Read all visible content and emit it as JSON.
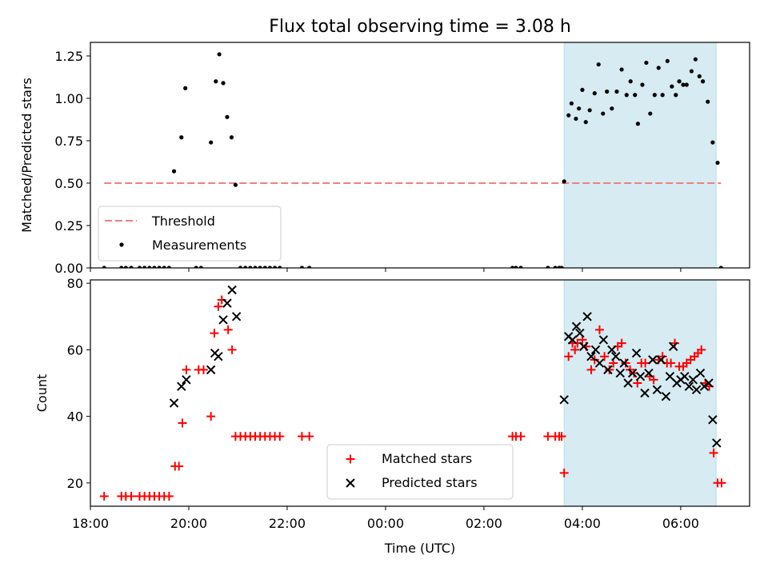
{
  "figure": {
    "title": "Flux total observing time = 3.08 h"
  },
  "chart_data": [
    {
      "id": "ratio",
      "type": "scatter",
      "xlabel": "",
      "ylabel": "Matched/Predicted stars",
      "xlim": [
        18.0,
        7.4
      ],
      "ylim": [
        0,
        1.33
      ],
      "x_wraps_midnight": true,
      "yticks": [
        0.0,
        0.25,
        0.5,
        0.75,
        1.0,
        1.25
      ],
      "ytick_labels": [
        "0.00",
        "0.25",
        "0.50",
        "0.75",
        "1.00",
        "1.25"
      ],
      "xtick_labels_shown": false,
      "shaded_span": {
        "start": 3.63,
        "end": 6.72,
        "color": "#add8e6"
      },
      "threshold": {
        "name": "Threshold",
        "y": 0.5,
        "x_start": 18.28,
        "x_end": 6.82,
        "color": "#f08080",
        "style": "dashed"
      },
      "legend": {
        "position": "lower-left",
        "entries": [
          "Threshold",
          "Measurements"
        ]
      },
      "series": [
        {
          "name": "Measurements",
          "marker": "dot",
          "color": "#000000",
          "points": [
            [
              18.28,
              0.0
            ],
            [
              18.63,
              0.0
            ],
            [
              18.72,
              0.0
            ],
            [
              18.83,
              0.0
            ],
            [
              19.0,
              0.0
            ],
            [
              19.1,
              0.0
            ],
            [
              19.2,
              0.0
            ],
            [
              19.3,
              0.0
            ],
            [
              19.4,
              0.0
            ],
            [
              19.5,
              0.0
            ],
            [
              19.6,
              0.0
            ],
            [
              19.7,
              0.57
            ],
            [
              19.85,
              0.77
            ],
            [
              19.93,
              1.06
            ],
            [
              20.15,
              0.0
            ],
            [
              20.25,
              0.0
            ],
            [
              20.45,
              0.74
            ],
            [
              20.55,
              1.1
            ],
            [
              20.62,
              1.26
            ],
            [
              20.7,
              1.09
            ],
            [
              20.78,
              0.89
            ],
            [
              20.87,
              0.77
            ],
            [
              20.95,
              0.49
            ],
            [
              21.05,
              0.0
            ],
            [
              21.15,
              0.0
            ],
            [
              21.25,
              0.0
            ],
            [
              21.35,
              0.0
            ],
            [
              21.45,
              0.0
            ],
            [
              21.55,
              0.0
            ],
            [
              21.65,
              0.0
            ],
            [
              21.75,
              0.0
            ],
            [
              21.85,
              0.0
            ],
            [
              22.3,
              0.0
            ],
            [
              22.45,
              0.0
            ],
            [
              2.58,
              0.0
            ],
            [
              2.65,
              0.0
            ],
            [
              2.75,
              0.0
            ],
            [
              3.3,
              0.0
            ],
            [
              3.45,
              0.0
            ],
            [
              3.53,
              0.0
            ],
            [
              3.58,
              0.0
            ],
            [
              3.63,
              0.51
            ],
            [
              3.72,
              0.9
            ],
            [
              3.78,
              0.97
            ],
            [
              3.87,
              0.88
            ],
            [
              3.93,
              0.94
            ],
            [
              4.0,
              1.05
            ],
            [
              4.07,
              0.86
            ],
            [
              4.15,
              0.93
            ],
            [
              4.25,
              1.03
            ],
            [
              4.33,
              1.2
            ],
            [
              4.42,
              0.91
            ],
            [
              4.5,
              1.04
            ],
            [
              4.6,
              0.94
            ],
            [
              4.7,
              1.04
            ],
            [
              4.8,
              1.17
            ],
            [
              4.9,
              1.02
            ],
            [
              4.98,
              1.1
            ],
            [
              5.07,
              1.02
            ],
            [
              5.13,
              0.85
            ],
            [
              5.22,
              1.08
            ],
            [
              5.3,
              1.21
            ],
            [
              5.38,
              0.91
            ],
            [
              5.47,
              1.02
            ],
            [
              5.55,
              1.18
            ],
            [
              5.63,
              1.02
            ],
            [
              5.73,
              1.22
            ],
            [
              5.82,
              1.07
            ],
            [
              5.9,
              1.02
            ],
            [
              5.97,
              1.1
            ],
            [
              6.05,
              1.08
            ],
            [
              6.12,
              1.08
            ],
            [
              6.22,
              1.16
            ],
            [
              6.3,
              1.23
            ],
            [
              6.38,
              1.13
            ],
            [
              6.45,
              1.1
            ],
            [
              6.55,
              0.98
            ],
            [
              6.65,
              0.74
            ],
            [
              6.75,
              0.62
            ],
            [
              6.82,
              0.0
            ]
          ]
        }
      ]
    },
    {
      "id": "count",
      "type": "scatter",
      "xlabel": "Time (UTC)",
      "ylabel": "Count",
      "xlim": [
        18.0,
        7.4
      ],
      "ylim": [
        13,
        81
      ],
      "x_wraps_midnight": true,
      "yticks": [
        20,
        40,
        60,
        80
      ],
      "ytick_labels": [
        "20",
        "40",
        "60",
        "80"
      ],
      "xticks": [
        18,
        20,
        22,
        0,
        2,
        4,
        6
      ],
      "xtick_labels": [
        "18:00",
        "20:00",
        "22:00",
        "00:00",
        "02:00",
        "04:00",
        "06:00"
      ],
      "shaded_span": {
        "start": 3.63,
        "end": 6.72,
        "color": "#add8e6"
      },
      "legend": {
        "position": "lower-center",
        "entries": [
          "Matched stars",
          "Predicted stars"
        ]
      },
      "series": [
        {
          "name": "Matched stars",
          "marker": "plus",
          "color": "#ff0000",
          "points": [
            [
              18.28,
              16
            ],
            [
              18.63,
              16
            ],
            [
              18.72,
              16
            ],
            [
              18.83,
              16
            ],
            [
              19.0,
              16
            ],
            [
              19.1,
              16
            ],
            [
              19.2,
              16
            ],
            [
              19.3,
              16
            ],
            [
              19.4,
              16
            ],
            [
              19.5,
              16
            ],
            [
              19.6,
              16
            ],
            [
              19.72,
              25
            ],
            [
              19.8,
              25
            ],
            [
              19.87,
              38
            ],
            [
              19.95,
              54
            ],
            [
              20.2,
              54
            ],
            [
              20.3,
              54
            ],
            [
              20.45,
              40
            ],
            [
              20.52,
              65
            ],
            [
              20.6,
              73
            ],
            [
              20.67,
              75
            ],
            [
              20.8,
              66
            ],
            [
              20.88,
              60
            ],
            [
              20.95,
              34
            ],
            [
              21.05,
              34
            ],
            [
              21.15,
              34
            ],
            [
              21.25,
              34
            ],
            [
              21.35,
              34
            ],
            [
              21.45,
              34
            ],
            [
              21.55,
              34
            ],
            [
              21.65,
              34
            ],
            [
              21.75,
              34
            ],
            [
              21.85,
              34
            ],
            [
              22.3,
              34
            ],
            [
              22.45,
              34
            ],
            [
              2.58,
              34
            ],
            [
              2.65,
              34
            ],
            [
              2.75,
              34
            ],
            [
              3.3,
              34
            ],
            [
              3.45,
              34
            ],
            [
              3.53,
              34
            ],
            [
              3.58,
              34
            ],
            [
              3.63,
              23
            ],
            [
              3.72,
              58
            ],
            [
              3.8,
              62
            ],
            [
              3.85,
              60
            ],
            [
              3.9,
              62
            ],
            [
              4.0,
              63
            ],
            [
              4.08,
              61
            ],
            [
              4.18,
              54
            ],
            [
              4.25,
              57
            ],
            [
              4.35,
              66
            ],
            [
              4.45,
              58
            ],
            [
              4.55,
              54
            ],
            [
              4.63,
              56
            ],
            [
              4.72,
              61
            ],
            [
              4.8,
              62
            ],
            [
              4.88,
              56
            ],
            [
              4.97,
              54
            ],
            [
              5.05,
              53
            ],
            [
              5.12,
              50
            ],
            [
              5.2,
              56
            ],
            [
              5.28,
              56
            ],
            [
              5.37,
              52
            ],
            [
              5.45,
              51
            ],
            [
              5.55,
              57
            ],
            [
              5.63,
              58
            ],
            [
              5.72,
              56
            ],
            [
              5.8,
              56
            ],
            [
              5.88,
              62
            ],
            [
              5.97,
              55
            ],
            [
              6.05,
              55
            ],
            [
              6.12,
              56
            ],
            [
              6.2,
              57
            ],
            [
              6.28,
              58
            ],
            [
              6.35,
              59
            ],
            [
              6.42,
              60
            ],
            [
              6.5,
              50
            ],
            [
              6.58,
              49
            ],
            [
              6.67,
              29
            ],
            [
              6.75,
              20
            ],
            [
              6.83,
              20
            ]
          ]
        },
        {
          "name": "Predicted stars",
          "marker": "x",
          "color": "#000000",
          "points": [
            [
              19.7,
              44
            ],
            [
              19.85,
              49
            ],
            [
              19.95,
              51
            ],
            [
              20.45,
              54
            ],
            [
              20.53,
              59
            ],
            [
              20.6,
              58
            ],
            [
              20.7,
              69
            ],
            [
              20.78,
              74
            ],
            [
              20.88,
              78
            ],
            [
              20.97,
              70
            ],
            [
              3.63,
              45
            ],
            [
              3.72,
              64
            ],
            [
              3.8,
              63
            ],
            [
              3.88,
              67
            ],
            [
              3.95,
              65
            ],
            [
              4.03,
              61
            ],
            [
              4.1,
              70
            ],
            [
              4.18,
              58
            ],
            [
              4.27,
              60
            ],
            [
              4.35,
              56
            ],
            [
              4.43,
              63
            ],
            [
              4.52,
              54
            ],
            [
              4.6,
              60
            ],
            [
              4.68,
              58
            ],
            [
              4.77,
              53
            ],
            [
              4.85,
              56
            ],
            [
              4.93,
              50
            ],
            [
              5.02,
              53
            ],
            [
              5.1,
              59
            ],
            [
              5.18,
              52
            ],
            [
              5.27,
              47
            ],
            [
              5.35,
              53
            ],
            [
              5.43,
              57
            ],
            [
              5.52,
              48
            ],
            [
              5.6,
              57
            ],
            [
              5.7,
              46
            ],
            [
              5.78,
              52
            ],
            [
              5.85,
              61
            ],
            [
              5.92,
              50
            ],
            [
              6.0,
              51
            ],
            [
              6.08,
              52
            ],
            [
              6.17,
              49
            ],
            [
              6.25,
              51
            ],
            [
              6.32,
              48
            ],
            [
              6.4,
              53
            ],
            [
              6.48,
              49
            ],
            [
              6.57,
              50
            ],
            [
              6.65,
              39
            ],
            [
              6.73,
              32
            ]
          ]
        }
      ]
    }
  ]
}
